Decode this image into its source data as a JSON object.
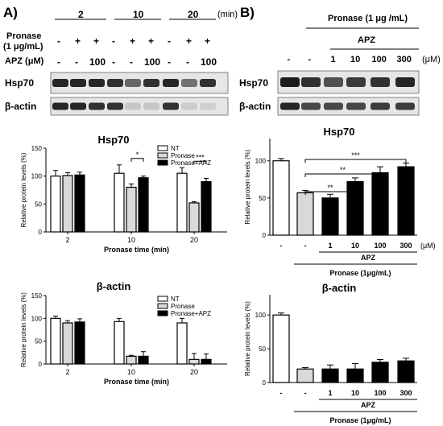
{
  "panelA": {
    "label": "A)",
    "time_unit": "(min)",
    "times": [
      "2",
      "10",
      "20"
    ],
    "row_labels": {
      "pronase_line1": "Pronase",
      "pronase_line2": "(1 μg/mL)",
      "apz": "APZ (μM)"
    },
    "pronase_marks": [
      "-",
      "+",
      "+",
      "-",
      "+",
      "+",
      "-",
      "+",
      "+"
    ],
    "apz_marks": [
      "-",
      "-",
      "100",
      "-",
      "-",
      "100",
      "-",
      "-",
      "100"
    ],
    "blot_labels": [
      "Hsp70",
      "β-actin"
    ]
  },
  "panelB": {
    "label": "B)",
    "pronase_header": "Pronase (1 μg /mL)",
    "apz_header": "APZ",
    "apz_unit": "(μM)",
    "lane_marks": [
      "-",
      "-",
      "1",
      "10",
      "100",
      "300"
    ],
    "blot_labels": [
      "Hsp70",
      "β-actin"
    ]
  },
  "chart_data": [
    {
      "id": "A-hsp70",
      "type": "bar",
      "title": "Hsp70",
      "xlabel": "Pronase time (min)",
      "ylabel": "Relative protein levels (%)",
      "ylim": [
        0,
        150
      ],
      "yticks": [
        "0",
        "50",
        "100",
        "150"
      ],
      "categories": [
        "2",
        "10",
        "20"
      ],
      "legend": "top-right",
      "series": [
        {
          "name": "NT",
          "color": "#ffffff",
          "values": [
            100,
            105,
            105
          ],
          "errors": [
            10,
            15,
            10
          ]
        },
        {
          "name": "Pronase",
          "color": "#d9d9d9",
          "values": [
            101,
            80,
            52
          ],
          "errors": [
            5,
            6,
            2
          ]
        },
        {
          "name": "Pronase+APZ",
          "color": "#000000",
          "values": [
            102,
            97,
            90
          ],
          "errors": [
            5,
            3,
            6
          ]
        }
      ],
      "significance": [
        {
          "label": "*",
          "group": 1,
          "from": 1,
          "to": 2
        },
        {
          "label": "***",
          "group": 2,
          "from": 1,
          "to": 2
        }
      ]
    },
    {
      "id": "A-bactin",
      "type": "bar",
      "title": "β-actin",
      "xlabel": "Pronase time (min)",
      "ylabel": "Relative protein levels (%)",
      "ylim": [
        0,
        150
      ],
      "yticks": [
        "0",
        "50",
        "100",
        "150"
      ],
      "categories": [
        "2",
        "10",
        "20"
      ],
      "legend": "top-right",
      "series": [
        {
          "name": "NT",
          "color": "#ffffff",
          "values": [
            100,
            93,
            90
          ],
          "errors": [
            5,
            7,
            10
          ]
        },
        {
          "name": "Pronase",
          "color": "#d9d9d9",
          "values": [
            90,
            17,
            10
          ],
          "errors": [
            5,
            2,
            13
          ]
        },
        {
          "name": "Pronase+APZ",
          "color": "#000000",
          "values": [
            92,
            17,
            10
          ],
          "errors": [
            7,
            10,
            12
          ]
        }
      ]
    },
    {
      "id": "B-hsp70",
      "type": "bar",
      "title": "Hsp70",
      "ylabel": "Relative protein levels (%)",
      "ylim": [
        0,
        130
      ],
      "yticks": [
        "0",
        "50",
        "100"
      ],
      "categories": [
        "-",
        "-",
        "1",
        "10",
        "100",
        "300"
      ],
      "xunit": "(μM)",
      "group_label": "APZ",
      "bottom_label": "Pronase (1μg/mL)",
      "values": [
        100,
        57,
        50,
        72,
        84,
        92
      ],
      "errors": [
        3,
        3,
        5,
        5,
        8,
        5
      ],
      "colors": [
        "#ffffff",
        "#d9d9d9",
        "#000000",
        "#000000",
        "#000000",
        "#000000"
      ],
      "significance": [
        {
          "label": "**",
          "from": 1,
          "to": 3
        },
        {
          "label": "**",
          "from": 1,
          "to": 4
        },
        {
          "label": "***",
          "from": 1,
          "to": 5
        }
      ]
    },
    {
      "id": "B-bactin",
      "type": "bar",
      "title": "β-actin",
      "ylabel": "Relative protein levels (%)",
      "ylim": [
        0,
        130
      ],
      "yticks": [
        "0",
        "50",
        "100"
      ],
      "categories": [
        "-",
        "-",
        "1",
        "10",
        "100",
        "300"
      ],
      "group_label": "APZ",
      "bottom_label": "Pronase (1μg/mL)",
      "values": [
        100,
        20,
        20,
        20,
        30,
        32
      ],
      "errors": [
        3,
        2,
        6,
        8,
        4,
        4
      ],
      "colors": [
        "#ffffff",
        "#d9d9d9",
        "#000000",
        "#000000",
        "#000000",
        "#000000"
      ]
    }
  ]
}
